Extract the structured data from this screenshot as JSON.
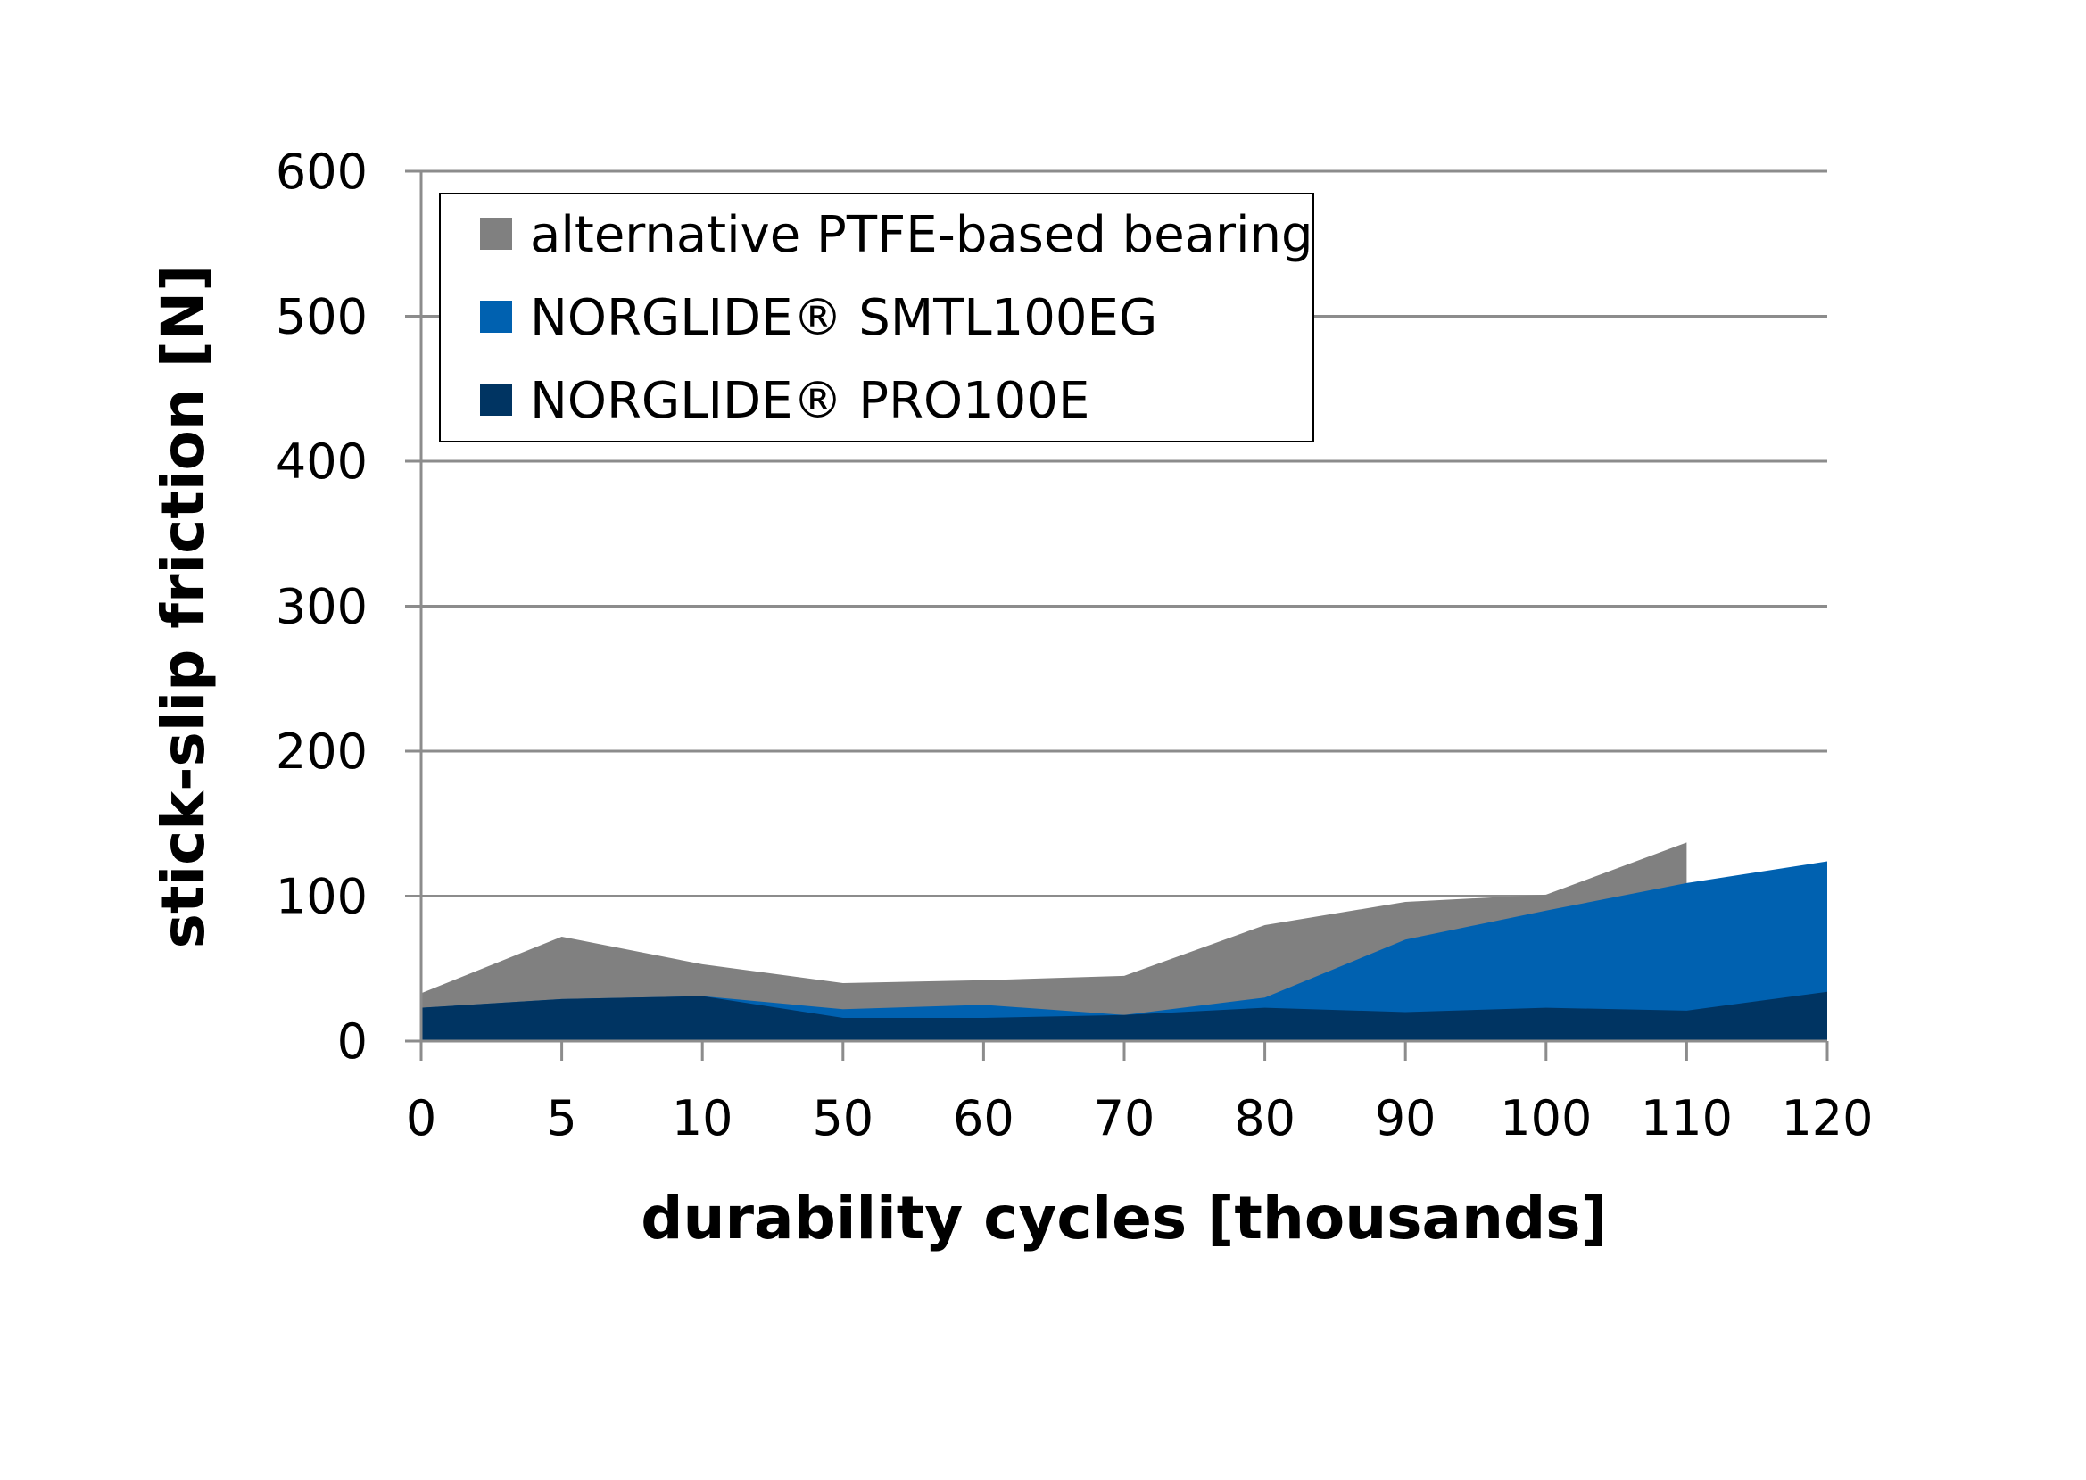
{
  "chart_data": {
    "type": "area",
    "title": "",
    "xlabel": "durability cycles [thousands]",
    "ylabel": "stick-slip friction  [N]",
    "categories": [
      "0",
      "5",
      "10",
      "50",
      "60",
      "70",
      "80",
      "90",
      "100",
      "110",
      "120"
    ],
    "ylim": [
      0,
      600
    ],
    "yticks": [
      0,
      100,
      200,
      300,
      400,
      500,
      600
    ],
    "ytick_labels": [
      "0",
      "100",
      "200",
      "300",
      "400",
      "500",
      "600"
    ],
    "grid": true,
    "legend_position": "top-left",
    "series": [
      {
        "name": "alternative PTFE-based bearing",
        "color": "#808080",
        "values": [
          33,
          72,
          53,
          40,
          42,
          45,
          80,
          96,
          101,
          137,
          null
        ]
      },
      {
        "name": "NORGLIDE® SMTL100EG",
        "color": "#0061B0",
        "values": [
          23,
          29,
          31,
          22,
          25,
          18,
          30,
          70,
          90,
          109,
          124
        ]
      },
      {
        "name": "NORGLIDE® PRO100E",
        "color": "#003462",
        "values": [
          23,
          29,
          31,
          16,
          16,
          18,
          23,
          20,
          23,
          21,
          34
        ]
      }
    ]
  }
}
